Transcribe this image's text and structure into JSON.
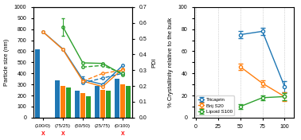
{
  "chart_data": [
    {
      "type": "bar",
      "categories": [
        "(100/0)",
        "(75/25)",
        "(50/50)",
        "(25/75)",
        "(0/100)"
      ],
      "ylabel": "Particle size (nm)",
      "y2label": "PDI",
      "ylim": [
        0,
        1000
      ],
      "yticks": [
        0,
        100,
        200,
        300,
        400,
        500,
        600,
        700,
        800,
        900,
        1000
      ],
      "y2lim": [
        0.0,
        0.7
      ],
      "y2ticks": [
        0.0,
        0.1,
        0.2,
        0.3,
        0.4,
        0.5,
        0.6,
        0.7
      ],
      "series": [
        {
          "type": "bar",
          "color": "#1f77b4",
          "values": [
            620,
            340,
            245,
            285,
            350
          ]
        },
        {
          "type": "bar",
          "color": "#ff7f0e",
          "values": [
            0,
            285,
            225,
            250,
            300
          ]
        },
        {
          "type": "bar",
          "color": "#2ca02c",
          "values": [
            0,
            270,
            195,
            240,
            290
          ]
        },
        {
          "type": "line",
          "color": "#1f77b4",
          "marker": "o",
          "line_style": "solid",
          "values": [
            775,
            620,
            345,
            300,
            470
          ],
          "errors": [
            null,
            null,
            25,
            null,
            null
          ]
        },
        {
          "type": "line",
          "color": "#ff7f0e",
          "marker": "o",
          "line_style": "solid",
          "values": [
            775,
            615,
            330,
            280,
            440
          ]
        },
        {
          "type": "line",
          "color": "#2ca02c",
          "marker": "o",
          "line_style": "solid",
          "values": [
            null,
            820,
            495,
            490,
            390
          ],
          "errors": [
            null,
            80,
            null,
            null,
            null
          ]
        },
        {
          "type": "line",
          "axis": "y2",
          "color": "#1f77b4",
          "marker": "o",
          "line_style": "dashed",
          "values": [
            null,
            null,
            0.22,
            0.25,
            0.28
          ]
        },
        {
          "type": "line",
          "axis": "y2",
          "color": "#ff7f0e",
          "marker": "o",
          "line_style": "dashed",
          "values": [
            null,
            null,
            0.23,
            0.28,
            0.3
          ]
        },
        {
          "type": "line",
          "axis": "y2",
          "color": "#2ca02c",
          "marker": "o",
          "line_style": "dashed",
          "values": [
            null,
            null,
            0.32,
            0.33,
            0.28
          ]
        }
      ],
      "annotations": [
        {
          "text": "X",
          "x": "(100/0)",
          "color": "red"
        },
        {
          "text": "X",
          "x": "(75/25)",
          "color": "red"
        },
        {
          "text": "X",
          "x": "(0/100)",
          "color": "red"
        }
      ]
    },
    {
      "type": "line",
      "x": [
        50,
        75,
        100
      ],
      "xlim": [
        -2,
        110
      ],
      "xticks": [
        0,
        25,
        50,
        75,
        100
      ],
      "ylim": [
        0,
        100
      ],
      "yticks": [
        0,
        {
          "value": 10,
          "label": ""
        },
        20,
        {
          "value": 30,
          "label": ""
        },
        40,
        {
          "value": 50,
          "label": ""
        },
        60,
        {
          "value": 70,
          "label": ""
        },
        80,
        {
          "value": 90,
          "label": ""
        },
        100
      ],
      "ylabel": "% Crystallinity relative to the bulk",
      "grid": "x",
      "legend": "lower left",
      "series": [
        {
          "name": "Tricaprin",
          "color": "#1f77b4",
          "marker": "o",
          "line_style": "solid",
          "values": [
            75,
            78,
            28
          ],
          "errors": [
            3,
            3,
            5
          ]
        },
        {
          "name": "Brij S20",
          "color": "#ff7f0e",
          "marker": "o",
          "line_style": "solid",
          "values": [
            46,
            31,
            19
          ],
          "errors": [
            3,
            3,
            4
          ]
        },
        {
          "name": "Lipoid S100",
          "color": "#2ca02c",
          "marker": "o",
          "line_style": "solid",
          "values": [
            10,
            18,
            19
          ],
          "errors": [
            2,
            2,
            3
          ]
        }
      ]
    }
  ]
}
